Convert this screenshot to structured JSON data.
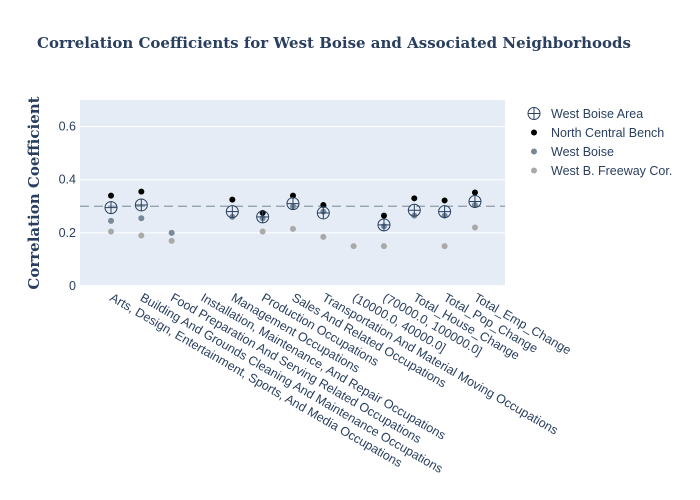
{
  "chart_data": {
    "type": "scatter",
    "title": "Correlation Coefficients for West Boise and Associated Neighborhoods",
    "xlabel": "",
    "ylabel": "Correlation Coefficient",
    "ylim": [
      0,
      0.7
    ],
    "yticks": [
      0,
      0.2,
      0.4,
      0.6
    ],
    "reference_line": 0.3,
    "categories": [
      "Arts, Design, Entertainment, Sports, And Media Occupations",
      "Building And Grounds Cleaning And Maintenance Occupations",
      "Food Preparation And Serving Related Occupations",
      "Installation, Maintenance, And Repair Occupations",
      "Management Occupations",
      "Production Occupations",
      "Sales And Related Occupations",
      "Transportation And Material Moving Occupations",
      "(10000.0, 40000.0]",
      "(70000.0, 100000.0]",
      "Total_House_Change",
      "Total_Pop_Change",
      "Total_Emp_Change"
    ],
    "series": [
      {
        "name": "West Boise Area",
        "color": "#2a3f5f",
        "values": [
          0.295,
          0.305,
          null,
          null,
          0.28,
          0.26,
          0.31,
          0.275,
          null,
          0.23,
          0.285,
          0.28,
          0.318
        ]
      },
      {
        "name": "North Central Bench",
        "color": "#000000",
        "values": [
          0.34,
          0.355,
          null,
          null,
          0.325,
          0.275,
          0.34,
          0.305,
          null,
          0.265,
          0.33,
          0.322,
          0.352
        ]
      },
      {
        "name": "West Boise",
        "color": "#778899",
        "values": [
          0.245,
          0.255,
          0.2,
          null,
          0.26,
          0.255,
          0.3,
          0.28,
          null,
          0.225,
          0.265,
          0.265,
          0.305
        ]
      },
      {
        "name": "West B. Freeway Cor.",
        "color": "#a9a9a9",
        "values": [
          0.205,
          0.19,
          0.17,
          null,
          null,
          0.205,
          0.215,
          0.185,
          0.15,
          0.15,
          null,
          0.15,
          0.22
        ]
      }
    ],
    "legend_position": "right"
  }
}
